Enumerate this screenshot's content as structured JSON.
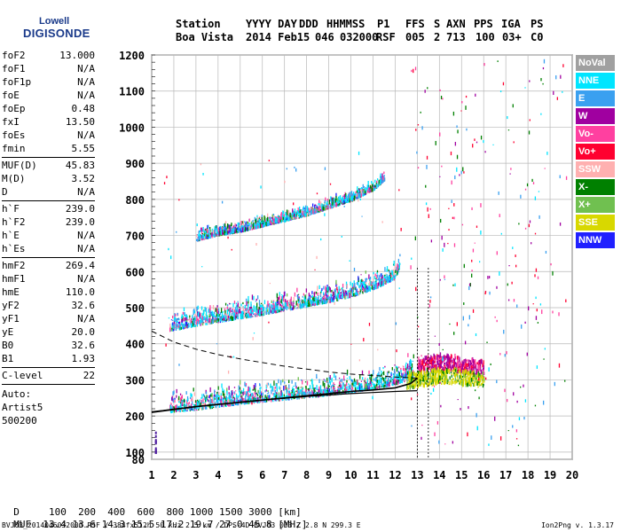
{
  "logo": {
    "line1": "Lowell",
    "line2": "DIGISONDE"
  },
  "header": {
    "labels": [
      "Station",
      "YYYY DAY",
      "DDD",
      "HHMMSS",
      "P1",
      "FFS",
      "S",
      "AXN",
      "PPS",
      "IGA",
      "PS"
    ],
    "values": [
      "Boa Vista",
      "2014 Feb15",
      "046",
      "032000",
      "RSF",
      "005",
      "2",
      "713",
      "100",
      "03+",
      "C0"
    ]
  },
  "params": [
    [
      {
        "k": "foF2",
        "v": "13.000"
      },
      {
        "k": "foF1",
        "v": "N/A"
      },
      {
        "k": "foF1p",
        "v": "N/A"
      },
      {
        "k": "foE",
        "v": "N/A"
      },
      {
        "k": "foEp",
        "v": "0.48"
      },
      {
        "k": "fxI",
        "v": "13.50"
      },
      {
        "k": "foEs",
        "v": "N/A"
      },
      {
        "k": "fmin",
        "v": "5.55"
      }
    ],
    [
      {
        "k": "MUF(D)",
        "v": "45.83"
      },
      {
        "k": "M(D)",
        "v": "3.52"
      },
      {
        "k": "D",
        "v": "N/A"
      }
    ],
    [
      {
        "k": "h`F",
        "v": "239.0"
      },
      {
        "k": "h`F2",
        "v": "239.0"
      },
      {
        "k": "h`E",
        "v": "N/A"
      },
      {
        "k": "h`Es",
        "v": "N/A"
      }
    ],
    [
      {
        "k": "hmF2",
        "v": "269.4"
      },
      {
        "k": "hmF1",
        "v": "N/A"
      },
      {
        "k": "hmE",
        "v": "110.0"
      },
      {
        "k": "yF2",
        "v": "32.6"
      },
      {
        "k": "yF1",
        "v": "N/A"
      },
      {
        "k": "yE",
        "v": "20.0"
      },
      {
        "k": "B0",
        "v": "32.6"
      },
      {
        "k": "B1",
        "v": "1.93"
      }
    ],
    [
      {
        "k": "C-level",
        "v": "22"
      }
    ]
  ],
  "auto": {
    "line1": "Auto:",
    "line2": "Artist5",
    "line3": "500200"
  },
  "legend": [
    {
      "label": "NoVal",
      "color": "#a0a0a0"
    },
    {
      "label": "NNE",
      "color": "#00e5ff"
    },
    {
      "label": "E",
      "color": "#3aa0f0"
    },
    {
      "label": "W",
      "color": "#a000a0"
    },
    {
      "label": "Vo-",
      "color": "#ff40a0"
    },
    {
      "label": "Vo+",
      "color": "#ff0030"
    },
    {
      "label": "SSW",
      "color": "#ffb0b0"
    },
    {
      "label": "X-",
      "color": "#008000"
    },
    {
      "label": "X+",
      "color": "#70c050"
    },
    {
      "label": "SSE",
      "color": "#d8d800"
    },
    {
      "label": "NNW",
      "color": "#2020ff"
    }
  ],
  "muf_table": {
    "d_label": "D",
    "d_values": [
      "100",
      "200",
      "400",
      "600",
      "800",
      "1000",
      "1500",
      "3000"
    ],
    "d_unit": "[km]",
    "muf_label": "MUF",
    "muf_values": [
      "13.4",
      "13.6",
      "14.3",
      "15.5",
      "17.2",
      "19.7",
      "27.0",
      "45.8"
    ],
    "muf_unit": "[MHz]"
  },
  "footer": {
    "left": "BVJ03_2014046032000.RSF / 384fx512h 50 kHz 2.5 km / DPS-4D BVJ03 003 / 2.8 N 299.3 E",
    "right": "Ion2Png v. 1.3.17"
  },
  "chart_data": {
    "type": "scatter",
    "xlim": [
      1,
      20
    ],
    "ylim": [
      80,
      1200
    ],
    "x_ticks": [
      1,
      2,
      3,
      4,
      5,
      6,
      7,
      8,
      9,
      10,
      11,
      12,
      13,
      14,
      15,
      16,
      17,
      18,
      19,
      20
    ],
    "y_ticks": [
      80,
      100,
      200,
      300,
      400,
      500,
      600,
      700,
      800,
      900,
      1000,
      1100,
      1200
    ],
    "x_tick_labels": [
      "1",
      "2",
      "3",
      "4",
      "5",
      "6",
      "7",
      "8",
      "9",
      "10",
      "11",
      "12",
      "13",
      "14",
      "15",
      "16",
      "17",
      "18",
      "19",
      "20"
    ],
    "y_tick_labels": [
      "80",
      "100",
      "200",
      "300",
      "400",
      "500",
      "600",
      "700",
      "800",
      "900",
      "1000",
      "1100",
      "1200"
    ],
    "grid": true,
    "fo_marker_mhz": 13.0,
    "fx_marker_mhz": 13.5,
    "traces": [
      {
        "name": "1F",
        "x": [
          1.8,
          3,
          4,
          5,
          6,
          7,
          8,
          9,
          10,
          11,
          12,
          12.8
        ],
        "y": [
          215,
          222,
          230,
          238,
          244,
          250,
          256,
          262,
          270,
          280,
          292,
          310
        ]
      },
      {
        "name": "2F",
        "x": [
          1.8,
          3,
          4,
          5,
          6,
          7,
          8,
          9,
          10,
          11,
          12,
          12.2
        ],
        "y": [
          440,
          455,
          465,
          475,
          485,
          497,
          508,
          520,
          535,
          555,
          585,
          615
        ]
      },
      {
        "name": "3F",
        "x": [
          3,
          4,
          5,
          6,
          7,
          8,
          9,
          10,
          11,
          11.5
        ],
        "y": [
          690,
          705,
          715,
          730,
          745,
          760,
          780,
          800,
          830,
          855
        ]
      },
      {
        "name": "ordinary",
        "x": [
          13,
          13.5,
          14,
          14.5,
          15,
          15.5,
          16
        ],
        "y": [
          330,
          340,
          345,
          340,
          335,
          330,
          325
        ]
      },
      {
        "name": "extraordinary",
        "x": [
          12.5,
          13,
          13.5,
          14,
          14.5,
          15,
          15.5,
          16
        ],
        "y": [
          290,
          295,
          300,
          305,
          305,
          300,
          300,
          295
        ]
      }
    ],
    "profile_curve": {
      "x": [
        1,
        1.5,
        2,
        3,
        4,
        5,
        6,
        7,
        8,
        9,
        10,
        11,
        12,
        12.7,
        13
      ],
      "y": [
        210,
        214,
        218,
        226,
        232,
        238,
        244,
        250,
        256,
        262,
        268,
        272,
        278,
        290,
        305
      ]
    },
    "virtual_height_curve": {
      "x": [
        1,
        1.5,
        2,
        3,
        4,
        5,
        6,
        7,
        8,
        9,
        10,
        11,
        12,
        13
      ],
      "y": [
        212,
        215,
        219,
        226,
        232,
        238,
        244,
        249,
        254,
        258,
        262,
        265,
        268,
        270
      ]
    },
    "dashed_curve": {
      "x": [
        1,
        1.5,
        2,
        3,
        4,
        5,
        6,
        7,
        8,
        9,
        10,
        11,
        12,
        13
      ],
      "y": [
        435,
        420,
        405,
        385,
        370,
        358,
        348,
        338,
        330,
        322,
        316,
        312,
        308,
        305
      ]
    }
  }
}
